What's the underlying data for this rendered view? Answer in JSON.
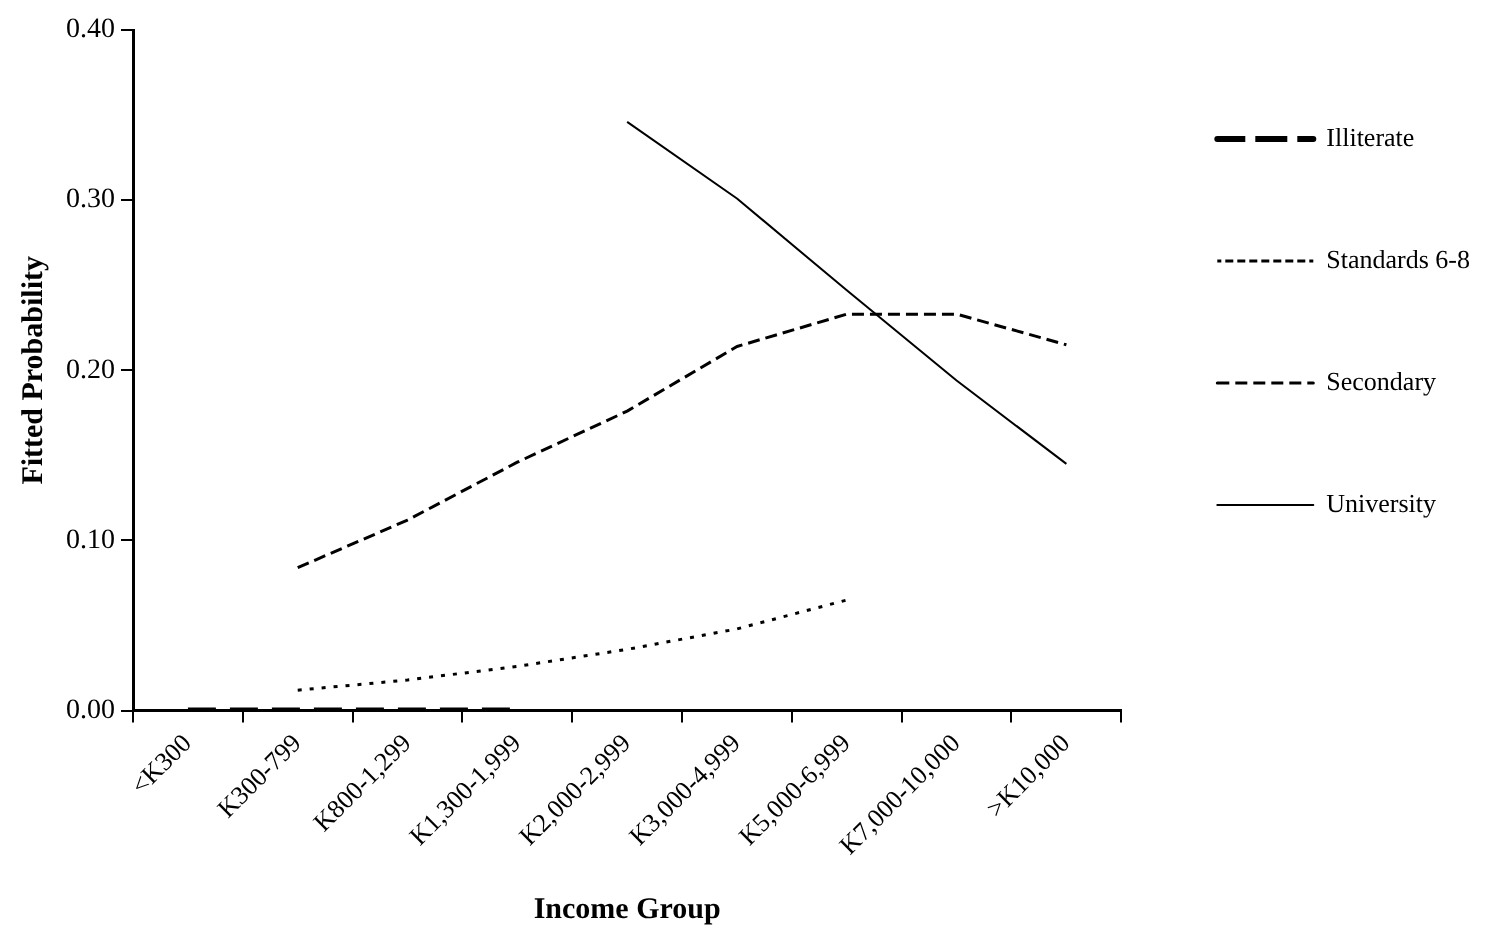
{
  "chart_data": {
    "type": "line",
    "xlabel": "Income Group",
    "ylabel": "Fitted Probability",
    "categories": [
      "<K300",
      "K300-799",
      "K800-1,299",
      "K1,300-1,999",
      "K2,000-2,999",
      "K3,000-4,999",
      "K5,000-6,999",
      "K7,000-10,000",
      ">K10,000"
    ],
    "ylim": [
      0,
      0.4
    ],
    "yticks": [
      {
        "value": 0,
        "label": "0.00"
      },
      {
        "value": 0.1,
        "label": "0.10"
      },
      {
        "value": 0.2,
        "label": "0.20"
      },
      {
        "value": 0.3,
        "label": "0.30"
      },
      {
        "value": 0.4,
        "label": "0.40"
      }
    ],
    "grid": false,
    "legend": "right",
    "marker": "none",
    "series": [
      {
        "name": "Illiterate",
        "color": "#000000",
        "line_style": "dashed",
        "values": [
          0,
          0,
          0,
          0,
          null,
          null,
          null,
          null,
          null
        ]
      },
      {
        "name": "Standards 6-8",
        "color": "#000000",
        "line_style": "dotted",
        "values": [
          null,
          0.012,
          0.018,
          0.026,
          0.036,
          0.048,
          0.065,
          null,
          null
        ]
      },
      {
        "name": "Secondary",
        "color": "#000000",
        "line_style": "dashed",
        "values": [
          null,
          0.084,
          0.112,
          0.146,
          0.176,
          0.214,
          0.233,
          0.233,
          0.215
        ]
      },
      {
        "name": "University",
        "color": "#000000",
        "line_style": "solid",
        "values": [
          null,
          null,
          null,
          null,
          0.346,
          0.301,
          0.247,
          0.194,
          0.145
        ]
      }
    ]
  }
}
